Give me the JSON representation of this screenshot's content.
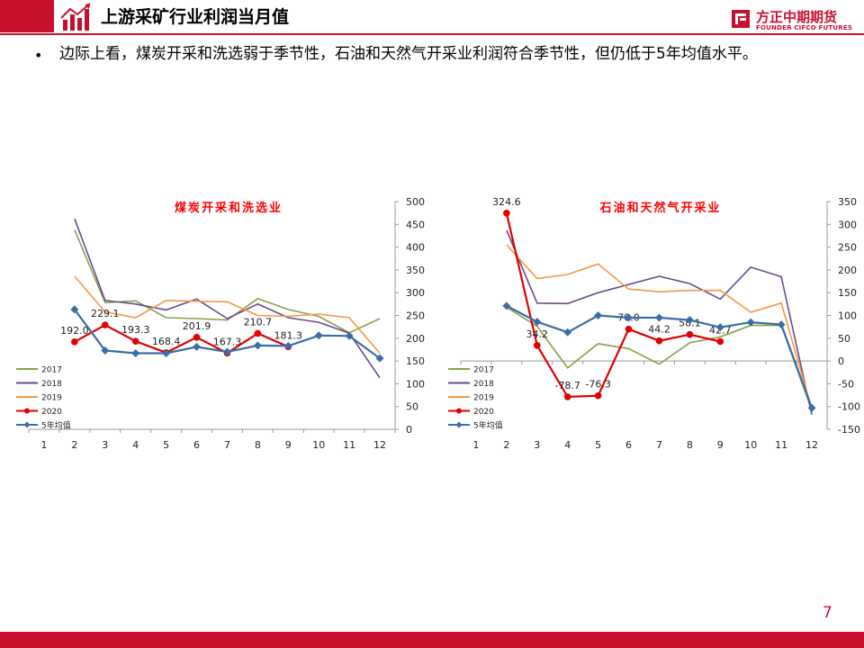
{
  "header": {
    "title": "上游采矿行业利润当月值",
    "accent_color": "#c8102e",
    "icon": "rising-chart-icon"
  },
  "logo": {
    "name_cn": "方正中期期货",
    "name_en": "FOUNDER CIFCO FUTURES",
    "icon": "founder-logo-icon"
  },
  "bullet": {
    "text": "边际上看，煤炭开采和洗选弱于季节性，石油和天然气开采业利润符合季节性，但仍低于5年均值水平。"
  },
  "page_number": "7",
  "chart_data": [
    {
      "type": "line",
      "title": "煤炭开采和洗选业",
      "title_color": "#ff0000",
      "categories": [
        "1",
        "2",
        "3",
        "4",
        "5",
        "6",
        "7",
        "8",
        "9",
        "10",
        "11",
        "12"
      ],
      "ylim": [
        0,
        500
      ],
      "yticks": [
        "0",
        "50",
        "100",
        "150",
        "200",
        "250",
        "300",
        "350",
        "400",
        "450",
        "500"
      ],
      "y_axis_side": "right",
      "legend_position": "bottom-left",
      "grid": false,
      "series": [
        {
          "name": "2017",
          "color": "#8aa04a",
          "marker": "none",
          "values": [
            null,
            438,
            278,
            282,
            245,
            243,
            240,
            287,
            263,
            248,
            212,
            243
          ]
        },
        {
          "name": "2018",
          "color": "#6a4a8e",
          "marker": "none",
          "values": [
            null,
            462,
            283,
            275,
            262,
            286,
            243,
            275,
            245,
            235,
            211,
            113
          ]
        },
        {
          "name": "2019",
          "color": "#f79646",
          "marker": "none",
          "values": [
            null,
            336,
            258,
            245,
            283,
            281,
            280,
            250,
            248,
            253,
            245,
            167
          ]
        },
        {
          "name": "2020",
          "color": "#e00000",
          "marker": "circle",
          "values": [
            null,
            192.0,
            229.1,
            193.3,
            168.4,
            201.9,
            167.3,
            210.7,
            181.3,
            null,
            null,
            null
          ],
          "labels": [
            "",
            "192.0",
            "229.1",
            "193.3",
            "168.4",
            "201.9",
            "167.3",
            "210.7",
            "181.3",
            "",
            "",
            ""
          ]
        },
        {
          "name": "5年均值",
          "color": "#3a6ea5",
          "marker": "diamond",
          "values": [
            null,
            263,
            173,
            167,
            167,
            181,
            170,
            184,
            183,
            206,
            205,
            156
          ]
        }
      ]
    },
    {
      "type": "line",
      "title": "石油和天然气开采业",
      "title_color": "#ff0000",
      "categories": [
        "1",
        "2",
        "3",
        "4",
        "5",
        "6",
        "7",
        "8",
        "9",
        "10",
        "11",
        "12"
      ],
      "ylim": [
        -150,
        350
      ],
      "yticks": [
        "-150",
        "-100",
        "-50",
        "0",
        "50",
        "100",
        "150",
        "200",
        "250",
        "300",
        "350"
      ],
      "y_axis_side": "right",
      "legend_position": "bottom-left",
      "grid": false,
      "series": [
        {
          "name": "2017",
          "color": "#8aa04a",
          "marker": "none",
          "values": [
            null,
            118,
            76,
            -15,
            38,
            27,
            -7,
            40,
            53,
            78,
            78,
            -108
          ]
        },
        {
          "name": "2018",
          "color": "#6a4a8e",
          "marker": "none",
          "values": [
            null,
            287,
            127,
            126,
            150,
            168,
            186,
            170,
            136,
            206,
            185,
            -118
          ]
        },
        {
          "name": "2019",
          "color": "#f79646",
          "marker": "none",
          "values": [
            null,
            255,
            181,
            190,
            213,
            158,
            152,
            155,
            155,
            107,
            127,
            -105
          ]
        },
        {
          "name": "2020",
          "color": "#e00000",
          "marker": "circle",
          "values": [
            null,
            324.6,
            34.2,
            -78.7,
            -76.3,
            70.0,
            44.2,
            58.1,
            42.7,
            null,
            null,
            null
          ],
          "labels": [
            "",
            "324.6",
            "34.2",
            "-78.7",
            "-76.3",
            "70.0",
            "44.2",
            "58.1",
            "42.7",
            "",
            "",
            ""
          ]
        },
        {
          "name": "5年均值",
          "color": "#3a6ea5",
          "marker": "diamond",
          "values": [
            null,
            121,
            86,
            63,
            100,
            95,
            95,
            90,
            74,
            85,
            80,
            -103
          ]
        }
      ]
    }
  ]
}
